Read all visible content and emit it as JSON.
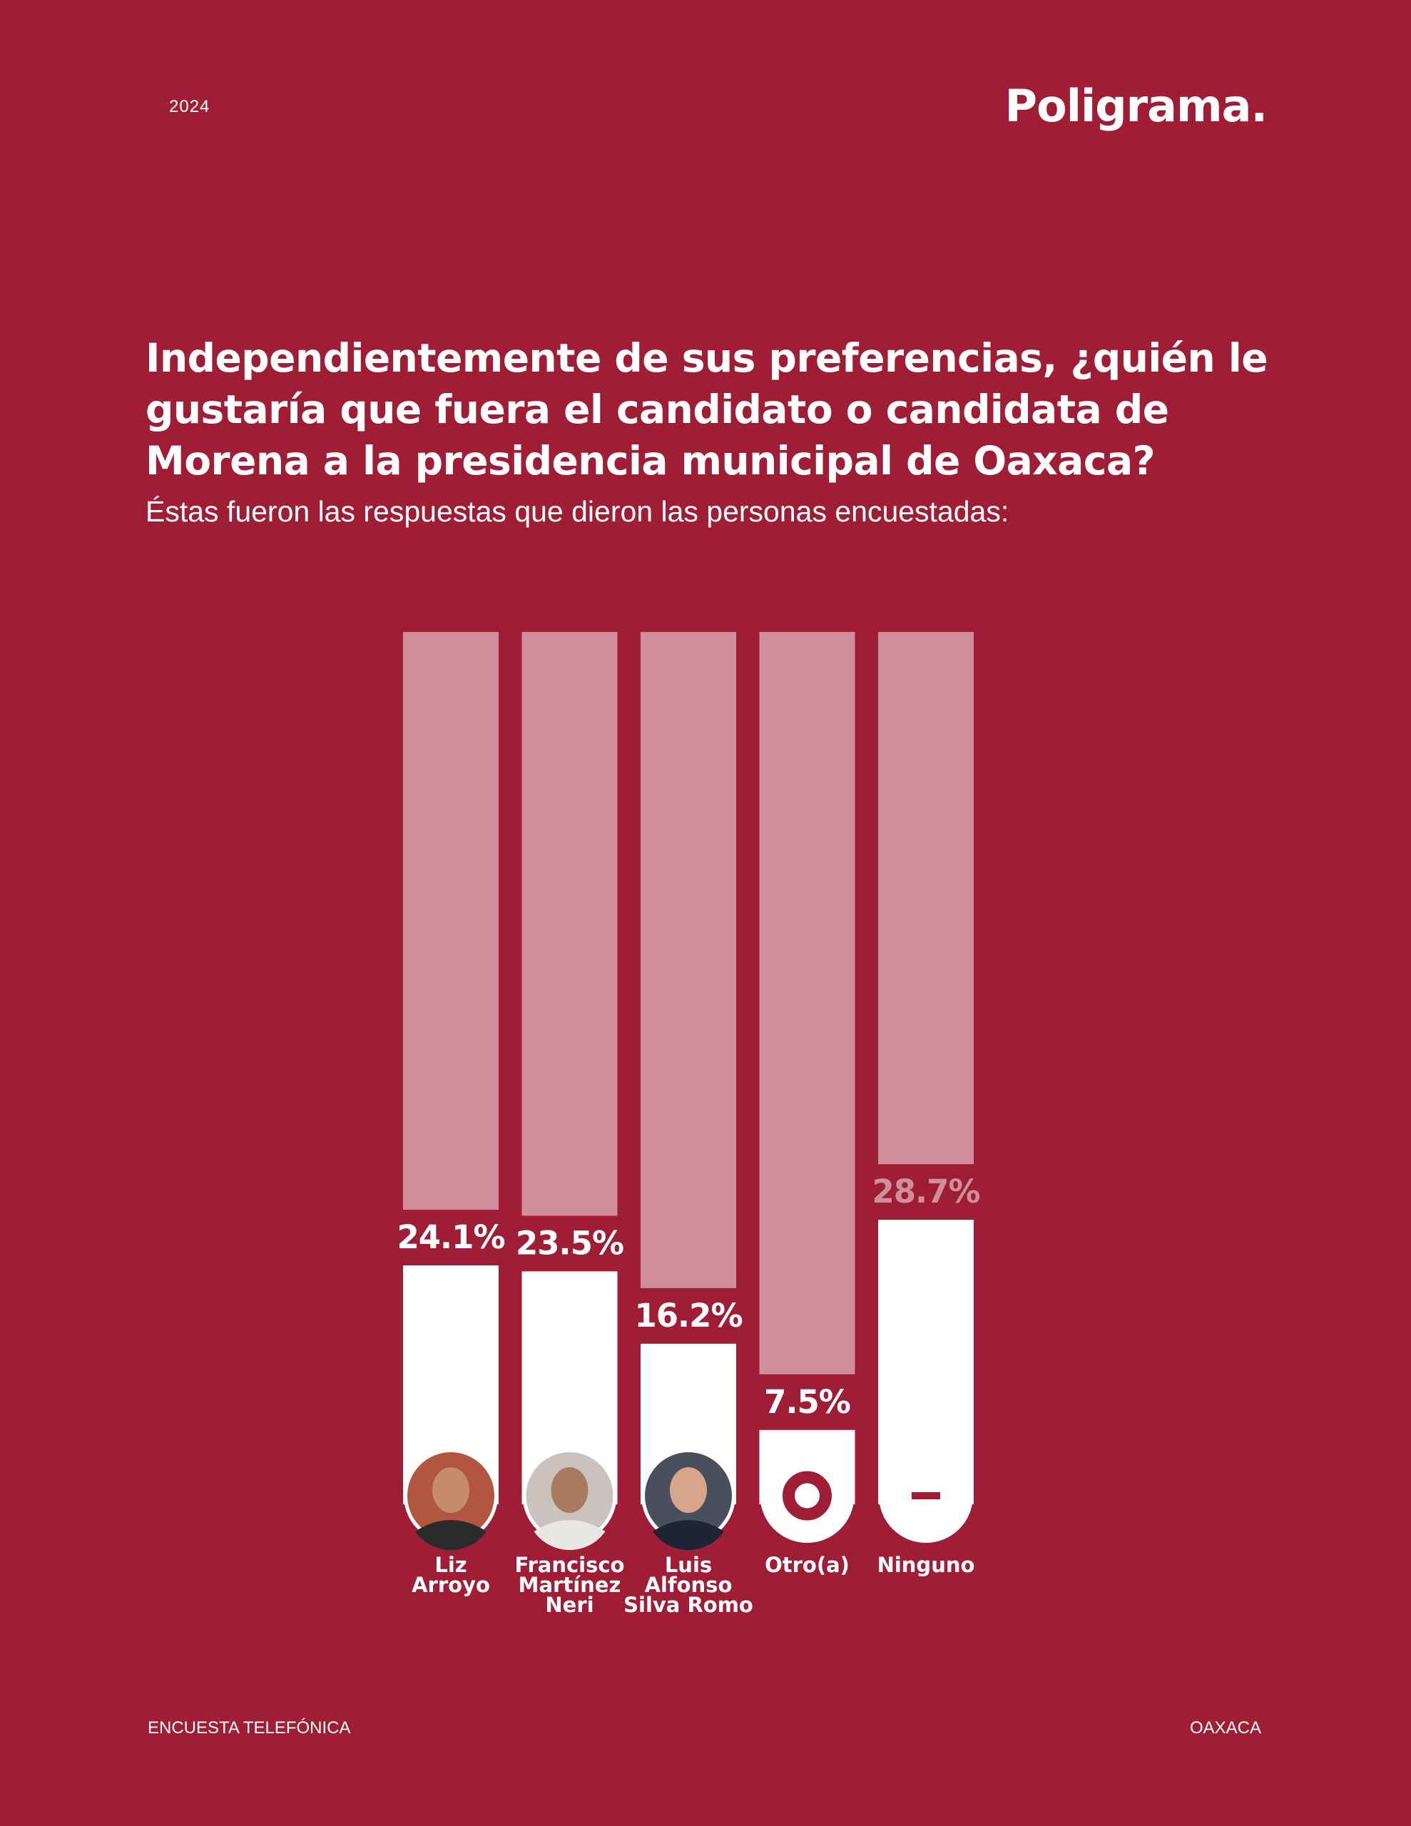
{
  "header": {
    "year": "2024",
    "brand": "Poligrama."
  },
  "chart_data": {
    "type": "bar",
    "title": "Independientemente de sus preferencias, ¿quién le gustaría que fuera el candidato o candidata de Morena a la presidencia municipal de Oaxaca?",
    "subtitle": "Éstas fueron las respuestas que dieron las personas encuestadas:",
    "categories": [
      "Liz\nArroyo",
      "Francisco\nMartínez\nNeri",
      "Luis\nAlfonso\nSilva Romo",
      "Otro(a)",
      "Ninguno"
    ],
    "values": [
      24.1,
      23.5,
      16.2,
      7.5,
      28.7
    ],
    "value_labels": [
      "24.1%",
      "23.5%",
      "16.2%",
      "7.5%",
      "28.7%"
    ],
    "value_label_colors": [
      "#ffffff",
      "#ffffff",
      "#ffffff",
      "#ffffff",
      "#d08e9b"
    ],
    "color": "#ffffff",
    "track_color": "#d08e9b",
    "ylim": [
      0,
      88
    ]
  },
  "footer": {
    "left": "ENCUESTA TELEFÓNICA",
    "right": "OAXACA"
  }
}
